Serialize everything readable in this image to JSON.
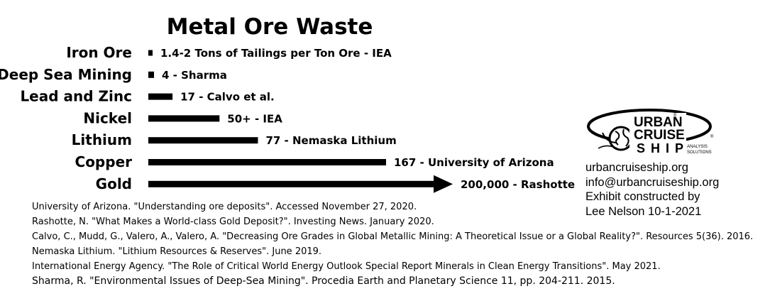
{
  "chart_data": {
    "type": "bar",
    "orientation": "horizontal",
    "title": "Metal Ore Waste",
    "xlabel": "",
    "ylabel": "",
    "axis_scale": "non-linear (longest bar truncated with arrow)",
    "grid": false,
    "legend": "none",
    "categories": [
      "Iron Ore",
      "Deep Sea Mining",
      "Lead and Zinc",
      "Nickel",
      "Lithium",
      "Copper",
      "Gold"
    ],
    "values": [
      1.7,
      4,
      17,
      50,
      77,
      167,
      200000
    ],
    "data_labels": [
      "1.4-2 Tons of Tailings per Ton Ore - IEA",
      "4 - Sharma",
      "17 - Calvo et al.",
      "50+ - IEA",
      "77 - Nemaska Lithium",
      "167 - University of Arizona",
      "200,000 - Rashotte"
    ],
    "colors": {
      "bar": "#000000",
      "text": "#000000",
      "background": "#ffffff"
    }
  },
  "references": [
    "University of Arizona. \"Understanding ore deposits\". Accessed November 27, 2020.",
    "Rashotte, N. \"What Makes a World-class Gold Deposit?\". Investing News. January 2020.",
    "Calvo, C., Mudd, G., Valero, A., Valero, A. \"Decreasing Ore Grades in Global Metallic Mining: A Theoretical Issue or a Global Reality?\". Resources 5(36). 2016.",
    "Nemaska Lithium. \"Lithium Resources & Reserves\". June 2019.",
    "International Energy Agency. \"The Role of Critical World Energy Outlook Special Report Minerals in Clean Energy Transitions\". May 2021.",
    "Sharma, R. \"Environmental Issues of Deep-Sea Mining\". Procedia Earth and Planetary Science 11, pp. 204-211. 2015."
  ],
  "logo": {
    "line1": "URBAN",
    "line2": "CRUISE",
    "line3": "SHIP",
    "sub1": "ANALYSIS",
    "sub2": "SOLUTIONS",
    "registered": "®",
    "icon": "globe-icon"
  },
  "contact": {
    "website": "urbancruiseship.org",
    "email": "info@urbancruiseship.org",
    "credit_line1": "Exhibit constructed by",
    "credit_line2": "Lee Nelson 10-1-2021"
  }
}
